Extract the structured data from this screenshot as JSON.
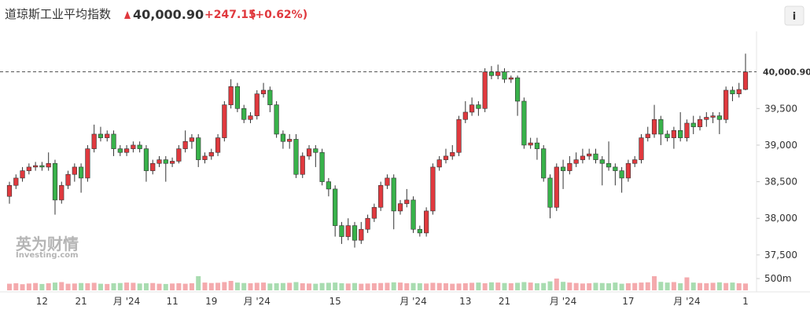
{
  "header": {
    "title": "道琼斯工业平均指数",
    "change": "+247.15",
    "change_pct": "(+0.62%)"
  },
  "watermark": {
    "brand": "英为财情",
    "site": "Investing.com"
  },
  "chart_data": {
    "type": "candlestick",
    "last_price": {
      "value": 40000.9,
      "label": "40,000.90"
    },
    "up_color": "#e0393e",
    "down_color": "#38b24a",
    "up_volume_color": "#f4aaad",
    "down_volume_color": "#a8dcb0",
    "ylim": [
      37370,
      40500
    ],
    "yticks": [
      {
        "value": 37500,
        "label": "37,500"
      },
      {
        "value": 38000,
        "label": "38,000"
      },
      {
        "value": 38500,
        "label": "38,500"
      },
      {
        "value": 39000,
        "label": "39,000"
      },
      {
        "value": 39500,
        "label": "39,500"
      }
    ],
    "volume_ylim": [
      0,
      1000
    ],
    "volume_ticks": [
      {
        "value": 500,
        "label": "500m"
      }
    ],
    "categories": [
      null,
      null,
      null,
      null,
      null,
      "12",
      null,
      null,
      null,
      null,
      null,
      "21",
      null,
      null,
      null,
      null,
      null,
      null,
      "月 '24",
      null,
      null,
      null,
      null,
      null,
      null,
      "11",
      null,
      null,
      null,
      null,
      null,
      "19",
      null,
      null,
      null,
      null,
      null,
      null,
      "月 '24",
      null,
      null,
      null,
      null,
      null,
      null,
      null,
      null,
      null,
      null,
      null,
      "15",
      null,
      null,
      null,
      null,
      null,
      null,
      null,
      null,
      null,
      null,
      null,
      "月 '24",
      null,
      null,
      null,
      null,
      null,
      null,
      null,
      "13",
      null,
      null,
      null,
      null,
      null,
      "21",
      null,
      null,
      null,
      null,
      null,
      null,
      null,
      null,
      "月 '24",
      null,
      null,
      null,
      null,
      null,
      null,
      null,
      null,
      null,
      "17",
      null,
      null,
      null,
      null,
      null,
      null,
      null,
      null,
      "月 '24",
      null,
      null,
      null,
      null,
      null,
      null,
      null,
      null,
      "1"
    ],
    "candles": [
      [
        38300,
        38500,
        38200,
        38450
      ],
      [
        38450,
        38600,
        38400,
        38550
      ],
      [
        38550,
        38700,
        38500,
        38650
      ],
      [
        38650,
        38750,
        38600,
        38700
      ],
      [
        38700,
        38770,
        38650,
        38720
      ],
      [
        38720,
        38770,
        38650,
        38700
      ],
      [
        38700,
        38900,
        38650,
        38750
      ],
      [
        38750,
        38800,
        38050,
        38250
      ],
      [
        38250,
        38500,
        38200,
        38450
      ],
      [
        38450,
        38650,
        38400,
        38600
      ],
      [
        38600,
        38750,
        38500,
        38700
      ],
      [
        38700,
        38750,
        38350,
        38550
      ],
      [
        38550,
        39000,
        38500,
        38950
      ],
      [
        38950,
        39280,
        38900,
        39150
      ],
      [
        39150,
        39250,
        39050,
        39100
      ],
      [
        39100,
        39200,
        39050,
        39150
      ],
      [
        39150,
        39200,
        38850,
        38950
      ],
      [
        38950,
        39000,
        38850,
        38900
      ],
      [
        38900,
        39000,
        38850,
        38950
      ],
      [
        38950,
        39050,
        38900,
        39000
      ],
      [
        39000,
        39050,
        38900,
        38950
      ],
      [
        38950,
        39000,
        38500,
        38650
      ],
      [
        38650,
        38800,
        38600,
        38750
      ],
      [
        38750,
        38850,
        38700,
        38800
      ],
      [
        38800,
        38850,
        38500,
        38750
      ],
      [
        38750,
        38830,
        38700,
        38780
      ],
      [
        38780,
        39000,
        38750,
        38950
      ],
      [
        38950,
        39200,
        38900,
        39050
      ],
      [
        39050,
        39150,
        38950,
        39100
      ],
      [
        39100,
        39150,
        38700,
        38800
      ],
      [
        38800,
        38900,
        38750,
        38850
      ],
      [
        38850,
        38950,
        38800,
        38900
      ],
      [
        38900,
        39150,
        38850,
        39100
      ],
      [
        39100,
        39600,
        39050,
        39550
      ],
      [
        39550,
        39900,
        39500,
        39800
      ],
      [
        39800,
        39850,
        39450,
        39500
      ],
      [
        39500,
        39550,
        39300,
        39350
      ],
      [
        39350,
        39450,
        39300,
        39400
      ],
      [
        39400,
        39750,
        39350,
        39700
      ],
      [
        39700,
        39850,
        39650,
        39750
      ],
      [
        39750,
        39800,
        39450,
        39550
      ],
      [
        39550,
        39600,
        39100,
        39150
      ],
      [
        39150,
        39200,
        38950,
        39050
      ],
      [
        39050,
        39150,
        38950,
        39080
      ],
      [
        39080,
        39150,
        38550,
        38600
      ],
      [
        38600,
        38900,
        38550,
        38850
      ],
      [
        38850,
        39000,
        38800,
        38950
      ],
      [
        38950,
        39000,
        38700,
        38900
      ],
      [
        38900,
        38950,
        38450,
        38500
      ],
      [
        38500,
        38550,
        38300,
        38400
      ],
      [
        38400,
        38450,
        37750,
        37900
      ],
      [
        37900,
        37950,
        37650,
        37750
      ],
      [
        37750,
        38000,
        37700,
        37900
      ],
      [
        37900,
        37950,
        37600,
        37700
      ],
      [
        37700,
        37950,
        37650,
        37850
      ],
      [
        37850,
        38050,
        37800,
        38000
      ],
      [
        38000,
        38200,
        37950,
        38150
      ],
      [
        38150,
        38500,
        38100,
        38450
      ],
      [
        38450,
        38600,
        38400,
        38550
      ],
      [
        38550,
        38600,
        37850,
        38100
      ],
      [
        38100,
        38250,
        38050,
        38200
      ],
      [
        38200,
        38400,
        38150,
        38250
      ],
      [
        38250,
        38300,
        37800,
        37850
      ],
      [
        37850,
        37900,
        37750,
        37800
      ],
      [
        37800,
        38150,
        37750,
        38100
      ],
      [
        38100,
        38750,
        38050,
        38700
      ],
      [
        38700,
        38850,
        38650,
        38800
      ],
      [
        38800,
        38950,
        38750,
        38850
      ],
      [
        38850,
        39000,
        38800,
        38900
      ],
      [
        38900,
        39400,
        38850,
        39350
      ],
      [
        39350,
        39600,
        39300,
        39450
      ],
      [
        39450,
        39650,
        39400,
        39550
      ],
      [
        39550,
        39600,
        39400,
        39500
      ],
      [
        39500,
        40050,
        39450,
        40000
      ],
      [
        40000,
        40080,
        39900,
        39950
      ],
      [
        39950,
        40100,
        39900,
        40000
      ],
      [
        40000,
        40050,
        39850,
        39900
      ],
      [
        39900,
        39950,
        39850,
        39920
      ],
      [
        39920,
        39950,
        39400,
        39600
      ],
      [
        39600,
        39650,
        38950,
        39000
      ],
      [
        39000,
        39100,
        38950,
        39030
      ],
      [
        39030,
        39100,
        38800,
        38950
      ],
      [
        38950,
        39000,
        38500,
        38550
      ],
      [
        38550,
        38600,
        38000,
        38150
      ],
      [
        38150,
        38750,
        38100,
        38700
      ],
      [
        38700,
        38800,
        38400,
        38650
      ],
      [
        38650,
        38850,
        38600,
        38750
      ],
      [
        38750,
        38900,
        38700,
        38800
      ],
      [
        38800,
        38950,
        38750,
        38850
      ],
      [
        38850,
        38950,
        38800,
        38880
      ],
      [
        38880,
        38950,
        38750,
        38800
      ],
      [
        38800,
        38850,
        38450,
        38750
      ],
      [
        38750,
        39050,
        38650,
        38700
      ],
      [
        38700,
        38750,
        38450,
        38650
      ],
      [
        38650,
        38700,
        38350,
        38550
      ],
      [
        38550,
        38800,
        38500,
        38750
      ],
      [
        38750,
        38850,
        38700,
        38800
      ],
      [
        38800,
        39150,
        38750,
        39100
      ],
      [
        39100,
        39250,
        39050,
        39150
      ],
      [
        39150,
        39550,
        39100,
        39350
      ],
      [
        39350,
        39400,
        39000,
        39150
      ],
      [
        39150,
        39200,
        39050,
        39100
      ],
      [
        39100,
        39250,
        38950,
        39200
      ],
      [
        39200,
        39450,
        39050,
        39100
      ],
      [
        39100,
        39350,
        39050,
        39300
      ],
      [
        39300,
        39400,
        39150,
        39250
      ],
      [
        39250,
        39400,
        39200,
        39350
      ],
      [
        39350,
        39450,
        39250,
        39380
      ],
      [
        39380,
        39450,
        39300,
        39400
      ],
      [
        39400,
        39450,
        39150,
        39350
      ],
      [
        39350,
        39800,
        39300,
        39750
      ],
      [
        39750,
        39800,
        39600,
        39700
      ],
      [
        39700,
        39850,
        39650,
        39760
      ],
      [
        39760,
        40250,
        39750,
        40000
      ]
    ],
    "volumes": [
      280,
      300,
      260,
      290,
      310,
      270,
      300,
      330,
      350,
      280,
      290,
      310,
      300,
      320,
      280,
      270,
      300,
      310,
      330,
      320,
      290,
      300,
      310,
      280,
      270,
      290,
      300,
      280,
      300,
      600,
      330,
      310,
      320,
      350,
      400,
      330,
      310,
      300,
      320,
      330,
      290,
      300,
      310,
      320,
      350,
      300,
      290,
      280,
      310,
      320,
      330,
      300,
      290,
      310,
      280,
      290,
      300,
      310,
      320,
      340,
      330,
      300,
      310,
      300,
      290,
      320,
      310,
      300,
      280,
      290,
      300,
      320,
      330,
      300,
      340,
      330,
      310,
      300,
      320,
      350,
      330,
      300,
      310,
      380,
      500,
      360,
      330,
      310,
      290,
      300,
      320,
      310,
      300,
      330,
      280,
      300,
      310,
      330,
      340,
      600,
      360,
      330,
      350,
      300,
      550,
      330,
      310,
      300,
      320,
      340,
      310,
      330,
      300,
      290
    ]
  }
}
